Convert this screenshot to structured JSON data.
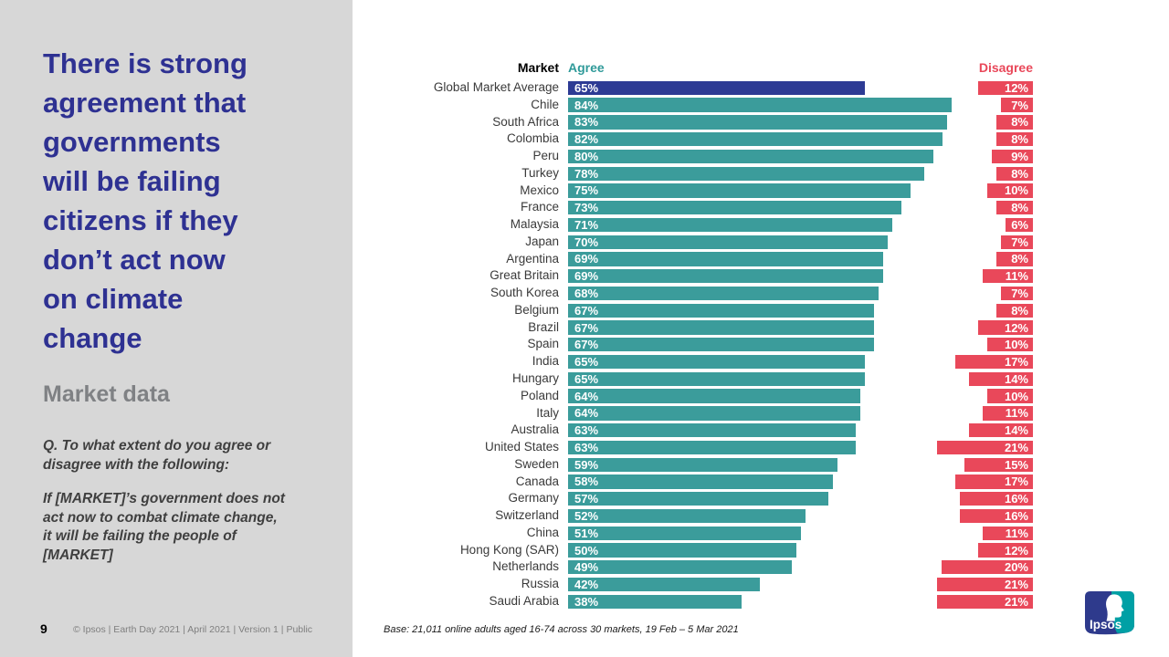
{
  "sidebar": {
    "title": "There is strong\nagreement that\ngovernments\nwill be failing\ncitizens if they\ndon’t act now\non climate\nchange",
    "subtitle": "Market data",
    "question_intro": "Q. To what extent do you agree or\ndisagree with the following:",
    "question_body": "If [MARKET]’s government does not\nact now to combat climate change,\nit will be failing the people of\n[MARKET]",
    "page_number": "9",
    "footer": "© Ipsos | Earth Day 2021 | April 2021 | Version 1 | Public"
  },
  "chart_data": {
    "type": "bar",
    "orientation": "horizontal",
    "headers": {
      "market": "Market",
      "agree": "Agree",
      "disagree": "Disagree"
    },
    "categories": [
      "Global Market Average",
      "Chile",
      "South Africa",
      "Colombia",
      "Peru",
      "Turkey",
      "Mexico",
      "France",
      "Malaysia",
      "Japan",
      "Argentina",
      "Great Britain",
      "South Korea",
      "Belgium",
      "Brazil",
      "Spain",
      "India",
      "Hungary",
      "Poland",
      "Italy",
      "Australia",
      "United States",
      "Sweden",
      "Canada",
      "Germany",
      "Switzerland",
      "China",
      "Hong Kong (SAR)",
      "Netherlands",
      "Russia",
      "Saudi Arabia"
    ],
    "series": [
      {
        "name": "Agree",
        "values": [
          65,
          84,
          83,
          82,
          80,
          78,
          75,
          73,
          71,
          70,
          69,
          69,
          68,
          67,
          67,
          67,
          65,
          65,
          64,
          64,
          63,
          63,
          59,
          58,
          57,
          52,
          51,
          50,
          49,
          42,
          38
        ]
      },
      {
        "name": "Disagree",
        "values": [
          12,
          7,
          8,
          8,
          9,
          8,
          10,
          8,
          6,
          7,
          8,
          11,
          7,
          8,
          12,
          10,
          17,
          14,
          10,
          11,
          14,
          21,
          15,
          17,
          16,
          16,
          11,
          12,
          20,
          21,
          21
        ]
      }
    ],
    "value_suffix": "%",
    "highlight_index": 0,
    "xlim": [
      0,
      100
    ],
    "colors": {
      "agree": "#3B9C9B",
      "disagree": "#E9485A",
      "highlight": "#2D3B94",
      "agree_header": "#2F9A99",
      "disagree_header": "#E9485A"
    },
    "note": "Base: 21,011 online adults aged 16-74 across 30 markets,  19 Feb – 5 Mar 2021"
  },
  "logo": {
    "label": "Ipsos"
  }
}
